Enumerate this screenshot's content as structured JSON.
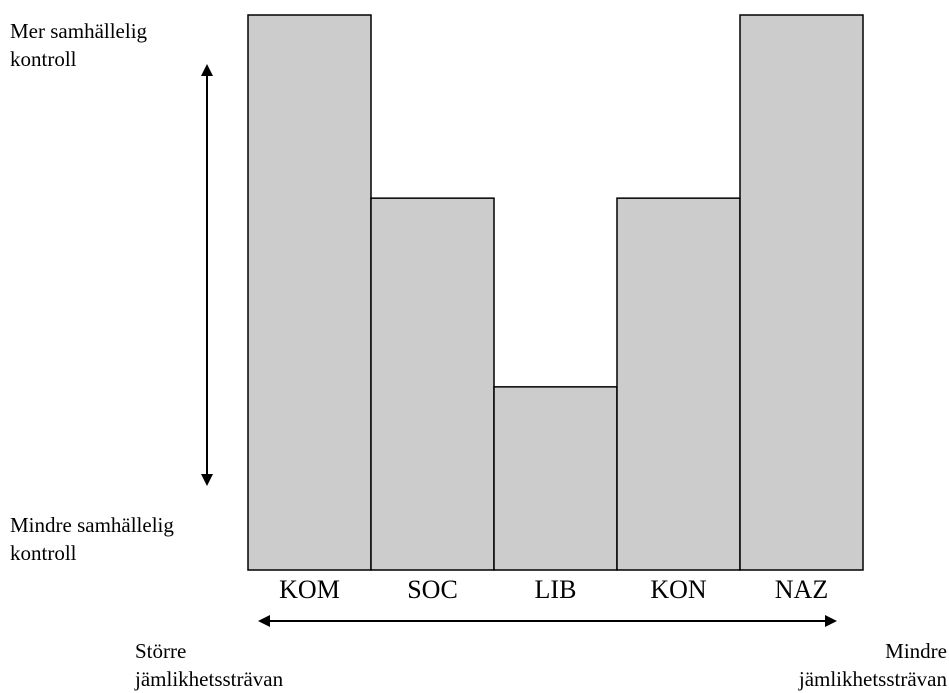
{
  "chart_data": {
    "type": "bar",
    "categories": [
      "KOM",
      "SOC",
      "LIB",
      "KON",
      "NAZ"
    ],
    "values": [
      100,
      67,
      33,
      67,
      100
    ],
    "ylim": [
      0,
      100
    ],
    "grid": false,
    "legend": "none",
    "bar_color": "#cccccc",
    "bar_edge_color": "#000000",
    "y_axis_top_label": [
      "Mer samhällelig",
      "kontroll"
    ],
    "y_axis_bottom_label": [
      "Mindre samhällelig",
      "kontroll"
    ],
    "x_axis_left_label": [
      "Större",
      "jämlikhetssträvan"
    ],
    "x_axis_right_label": [
      "Mindre",
      "jämlikhetssträvan"
    ]
  }
}
